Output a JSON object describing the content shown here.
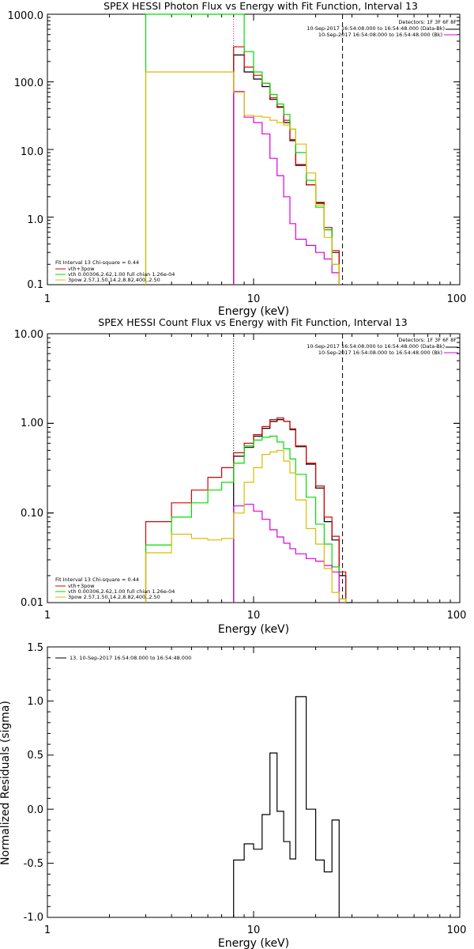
{
  "chart_data": [
    {
      "type": "line",
      "title": "SPEX HESSI Photon Flux vs Energy with Fit Function, Interval 13",
      "xlabel": "Energy (keV)",
      "ylabel": "",
      "x_scale": "log",
      "y_scale": "log",
      "xlim": [
        1,
        100
      ],
      "ylim": [
        0.1,
        1000
      ],
      "x_ticks": [
        "1",
        "10",
        "100"
      ],
      "y_ticks": [
        "0.1",
        "1.0",
        "10.0",
        "100.0",
        "1000.0"
      ],
      "info_lines": [
        "Detectors: 1F 3F 6F 8F",
        "10-Sep-2017 16:54:08.000 to 16:54:48.000 (Data-Bk)",
        "10-Sep-2017 16:54:08.000 to 16:54:48.000 (Bk)"
      ],
      "fit_lines": [
        "Fit Interval 13   Chi-square = 0.44",
        "vth+3pow",
        "vth 0.00306,2.62,1.00  full chian 1.26e-04",
        "3pow 2.57,1.50,14.2,8.82,400.,2.50"
      ],
      "vlines": [
        {
          "x": 8.0,
          "style": "dotted",
          "color": "#cc00cc"
        },
        {
          "x": 27.0,
          "style": "dashed",
          "color": "#000000"
        }
      ],
      "edges": [
        3,
        8,
        9,
        10,
        11,
        12,
        13,
        14,
        15,
        16,
        18,
        20,
        22,
        24,
        26,
        28
      ],
      "series": [
        {
          "name": "",
          "color": "#000000",
          "x_range": [
            8,
            28
          ],
          "values": [
            250,
            140,
            110,
            85,
            55,
            42,
            25,
            13.5,
            5.8,
            3,
            1.6,
            0.65,
            0.3
          ]
        },
        {
          "name": "",
          "color": "#dd0000",
          "x_range": [
            8,
            28
          ],
          "values": [
            330,
            165,
            125,
            95,
            58,
            43,
            27,
            14,
            6,
            3,
            1.65,
            0.7,
            0.32
          ]
        },
        {
          "name": "",
          "color": "#00dd00",
          "x_range": [
            3,
            28
          ],
          "values": [
            1000,
            1000,
            280,
            140,
            95,
            65,
            47,
            33,
            20,
            9,
            3.5,
            1.4,
            0.65,
            0.2
          ]
        },
        {
          "name": "",
          "color": "#dd00dd",
          "x_range": [
            8,
            28
          ],
          "values": [
            72,
            30,
            25,
            17,
            7.4,
            4.1,
            2,
            0.8,
            0.47,
            0.38,
            0.3,
            0.24,
            0.15
          ]
        },
        {
          "name": "",
          "color": "#ddbb00",
          "x_range": [
            3,
            28
          ],
          "values": [
            140,
            70,
            32,
            31,
            30,
            27,
            25,
            23,
            20,
            12,
            4.5,
            1.5,
            0.5,
            0.2
          ]
        }
      ]
    },
    {
      "type": "line",
      "title": "SPEX HESSI Count Flux vs Energy with Fit Function, Interval 13",
      "xlabel": "Energy (keV)",
      "ylabel": "",
      "x_scale": "log",
      "y_scale": "log",
      "xlim": [
        1,
        100
      ],
      "ylim": [
        0.01,
        10
      ],
      "x_ticks": [
        "1",
        "10",
        "100"
      ],
      "y_ticks": [
        "0.01",
        "0.10",
        "1.00",
        "10.00"
      ],
      "info_lines": [
        "Detectors: 1F 3F 6F 8F",
        "10-Sep-2017 16:54:08.000 to 16:54:48.000 (Data-Bk)",
        "10-Sep-2017 16:54:08.000 to 16:54:48.000 (Bk)"
      ],
      "fit_lines": [
        "Fit Interval 13   Chi-square = 0.44",
        "vth+3pow",
        "vth 0.00306,2.62,1.00  full chian 1.26e-04",
        "3pow 2.57,1.50,14.2,8.82,400.,2.50"
      ],
      "vlines": [
        {
          "x": 8.0,
          "style": "dotted",
          "color": "#000000"
        },
        {
          "x": 27.0,
          "style": "dashed",
          "color": "#000000"
        }
      ],
      "edges": [
        3,
        4,
        5,
        6,
        7,
        8,
        9,
        10,
        11,
        12,
        13,
        14,
        15,
        16,
        18,
        20,
        22,
        24,
        26,
        28
      ],
      "series": [
        {
          "name": "",
          "color": "#000000",
          "x_range": [
            8,
            30
          ],
          "values": [
            0.43,
            0.54,
            0.72,
            0.88,
            1.05,
            1.1,
            1.05,
            0.85,
            0.55,
            0.35,
            0.19,
            0.08,
            0.05,
            0.02,
            0.01
          ]
        },
        {
          "name": "",
          "color": "#dd0000",
          "x_range": [
            3,
            28
          ],
          "values": [
            0.08,
            0.13,
            0.18,
            0.25,
            0.32,
            0.47,
            0.6,
            0.75,
            0.92,
            1.1,
            1.15,
            1.05,
            0.87,
            0.56,
            0.36,
            0.2,
            0.09,
            0.055,
            0.022
          ]
        },
        {
          "name": "",
          "color": "#00dd00",
          "x_range": [
            3,
            28
          ],
          "values": [
            0.044,
            0.09,
            0.13,
            0.18,
            0.22,
            0.36,
            0.56,
            0.65,
            0.7,
            0.72,
            0.62,
            0.52,
            0.4,
            0.27,
            0.15,
            0.075,
            0.045,
            0.025,
            0.011
          ]
        },
        {
          "name": "",
          "color": "#dd00dd",
          "x_range": [
            8,
            28
          ],
          "values": [
            0.12,
            0.125,
            0.105,
            0.085,
            0.065,
            0.054,
            0.046,
            0.04,
            0.035,
            0.031,
            0.029,
            0.026,
            0.022
          ]
        },
        {
          "name": "",
          "color": "#ddbb00",
          "x_range": [
            3,
            28
          ],
          "values": [
            0.036,
            0.058,
            0.052,
            0.05,
            0.052,
            0.1,
            0.22,
            0.32,
            0.45,
            0.48,
            0.5,
            0.38,
            0.28,
            0.14,
            0.067,
            0.045,
            0.024,
            0.013,
            0.011
          ]
        }
      ]
    },
    {
      "type": "line",
      "title": "",
      "xlabel": "Energy (keV)",
      "ylabel": "Normalized Residuals (sigma)",
      "x_scale": "log",
      "y_scale": "linear",
      "xlim": [
        1,
        100
      ],
      "ylim": [
        -1.0,
        1.5
      ],
      "x_ticks": [
        "1",
        "10",
        "100"
      ],
      "y_ticks": [
        "-1.0",
        "-0.5",
        "0.0",
        "0.5",
        "1.0",
        "1.5"
      ],
      "legend": "13. 10-Sep-2017 16:54:08.000 to 16:54:48.000",
      "edges": [
        8,
        9,
        10,
        11,
        12,
        13,
        14,
        15,
        16,
        18,
        20,
        22,
        24,
        26,
        28
      ],
      "series": [
        {
          "name": "13. 10-Sep-2017 16:54:08.000 to 16:54:48.000",
          "color": "#000000",
          "values": [
            -0.47,
            -0.32,
            -0.37,
            -0.05,
            0.52,
            -0.02,
            -0.3,
            -0.46,
            1.04,
            0.0,
            -0.47,
            -0.58,
            -0.1
          ]
        }
      ]
    }
  ]
}
